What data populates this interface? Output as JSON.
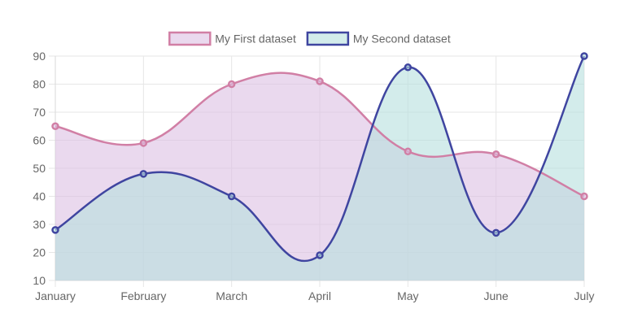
{
  "chart_data": {
    "type": "area",
    "title": "",
    "xlabel": "",
    "ylabel": "",
    "categories": [
      "January",
      "February",
      "March",
      "April",
      "May",
      "June",
      "July"
    ],
    "ylim": [
      10,
      90
    ],
    "yticks": [
      10,
      20,
      30,
      40,
      50,
      60,
      70,
      80,
      90
    ],
    "grid": true,
    "legend_position": "top",
    "curve": "smooth",
    "series": [
      {
        "name": "My First dataset",
        "values": [
          65,
          59,
          80,
          81,
          56,
          55,
          40
        ],
        "line_color": "#d17fa5",
        "fill_color": "#dcbfe2"
      },
      {
        "name": "My Second dataset",
        "values": [
          28,
          48,
          40,
          19,
          86,
          27,
          90
        ],
        "line_color": "#3f45a0",
        "fill_color": "#b5e0dd"
      }
    ]
  }
}
